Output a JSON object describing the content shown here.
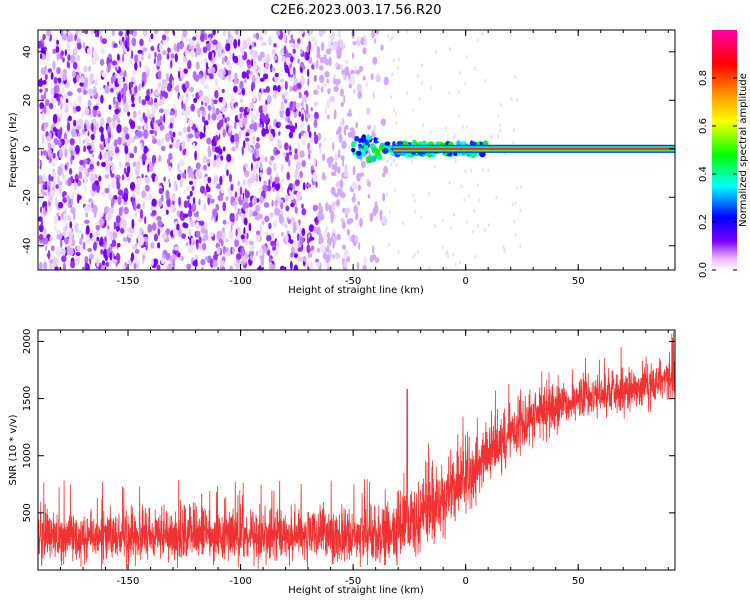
{
  "figure": {
    "title": "C2E6.2023.003.17.56.R20"
  },
  "chart_data": [
    {
      "type": "heatmap",
      "xlabel": "Height of straight line (km)",
      "ylabel": "Frequency (Hz)",
      "xlim": [
        -190,
        93
      ],
      "ylim": [
        -50,
        49
      ],
      "xticks": [
        -150,
        -100,
        -50,
        0,
        50
      ],
      "yticks": [
        -40,
        -20,
        0,
        20,
        40
      ],
      "grid": false,
      "description_values": {
        "noise_region_x": [
          -190,
          -35
        ],
        "signal_start_x": -50,
        "signal_line_frequency": 0,
        "signal_end_x": 93
      },
      "colorbar": {
        "label": "Normalized spectral amplitude",
        "range": [
          0.0,
          1.0
        ],
        "ticks": [
          0.0,
          0.2,
          0.4,
          0.6,
          0.8
        ],
        "colors": [
          "#ffffff",
          "#7a00ff",
          "#0000ff",
          "#00ffff",
          "#00ff00",
          "#ffff00",
          "#ff8000",
          "#ff0000",
          "#ff00ff"
        ]
      }
    },
    {
      "type": "line",
      "xlabel": "Height of straight line (km)",
      "ylabel": "SNR (10 * v/v)",
      "xlim": [
        -190,
        93
      ],
      "ylim": [
        0,
        2100
      ],
      "xticks": [
        -150,
        -100,
        -50,
        0,
        50
      ],
      "yticks": [
        500,
        1000,
        1500,
        2000
      ],
      "grid": false,
      "color": "#f03232",
      "trend": {
        "x": [
          -190,
          -150,
          -100,
          -50,
          -35,
          -20,
          -10,
          0,
          10,
          25,
          50,
          75,
          93
        ],
        "mean": [
          300,
          300,
          300,
          300,
          320,
          450,
          650,
          800,
          1000,
          1300,
          1500,
          1600,
          1700
        ],
        "spread": [
          250,
          250,
          250,
          250,
          300,
          350,
          350,
          350,
          300,
          250,
          200,
          200,
          200
        ]
      },
      "spike": {
        "x": -26,
        "y": 1580
      }
    }
  ]
}
